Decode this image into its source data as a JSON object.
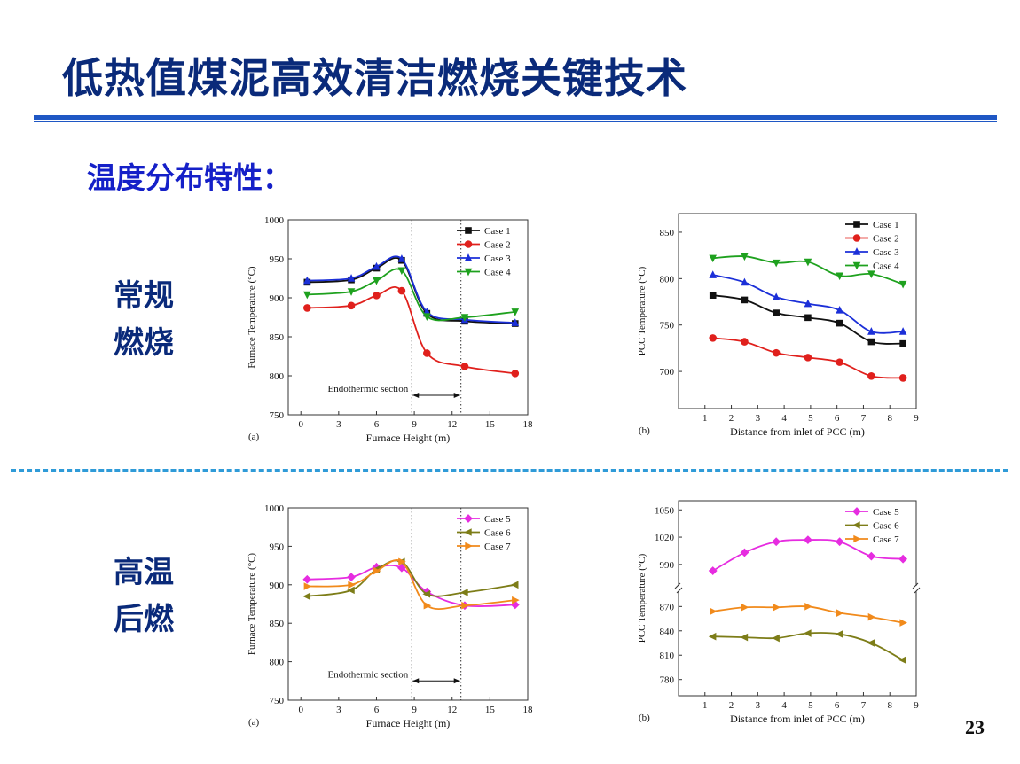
{
  "header": {
    "title": "低热值煤泥高效清洁燃烧关键技术"
  },
  "section": {
    "subtitle": "温度分布特性："
  },
  "labels": {
    "conventional": [
      "常规",
      "燃烧"
    ],
    "high_temp": [
      "高温",
      "后燃"
    ]
  },
  "page_number": "23",
  "colors": {
    "Case 1": "#111111",
    "Case 2": "#e0201c",
    "Case 3": "#1b2fd8",
    "Case 4": "#1ea11e",
    "Case 5": "#e62ce0",
    "Case 6": "#7d7d18",
    "Case 7": "#f18a1b"
  },
  "chart_data": [
    {
      "type": "line",
      "panel": "(a)",
      "xlabel": "Furnace Height (m)",
      "ylabel": "Furnace Temperature (°C)",
      "xlim": [
        -1,
        18
      ],
      "ylim": [
        750,
        1000
      ],
      "xticks": [
        0,
        3,
        6,
        9,
        12,
        15,
        18
      ],
      "yticks": [
        750,
        800,
        850,
        900,
        950,
        1000
      ],
      "legend": "top-right",
      "vlines": [
        8.8,
        12.7
      ],
      "annotation": {
        "text": "Endothermic section",
        "arrow_from": 8.8,
        "arrow_to": 12.7,
        "y": 775
      },
      "series": [
        {
          "name": "Case 1",
          "marker": "square",
          "x": [
            0.5,
            4,
            6,
            8,
            10,
            13,
            17
          ],
          "y": [
            920,
            923,
            938,
            948,
            880,
            870,
            867
          ]
        },
        {
          "name": "Case 2",
          "marker": "circle",
          "x": [
            0.5,
            4,
            6,
            8,
            10,
            13,
            17
          ],
          "y": [
            887,
            890,
            903,
            909,
            829,
            812,
            803
          ]
        },
        {
          "name": "Case 3",
          "marker": "triangle-up",
          "x": [
            0.5,
            4,
            6,
            8,
            10,
            13,
            17
          ],
          "y": [
            922,
            925,
            940,
            950,
            882,
            872,
            868
          ]
        },
        {
          "name": "Case 4",
          "marker": "triangle-down",
          "x": [
            0.5,
            4,
            6,
            8,
            10,
            13,
            17
          ],
          "y": [
            904,
            908,
            922,
            935,
            876,
            875,
            882
          ]
        }
      ]
    },
    {
      "type": "line",
      "panel": "(b)",
      "xlabel": "Distance from inlet of PCC (m)",
      "ylabel": "PCC  Temperature (°C)",
      "xlim": [
        0,
        9
      ],
      "ylim": [
        660,
        870
      ],
      "xticks": [
        1,
        2,
        3,
        4,
        5,
        6,
        7,
        8,
        9
      ],
      "yticks": [
        700,
        750,
        800,
        850
      ],
      "legend": "top-right",
      "series": [
        {
          "name": "Case 1",
          "marker": "square",
          "x": [
            1.3,
            2.5,
            3.7,
            4.9,
            6.1,
            7.3,
            8.5
          ],
          "y": [
            782,
            777,
            763,
            758,
            752,
            732,
            730
          ]
        },
        {
          "name": "Case 2",
          "marker": "circle",
          "x": [
            1.3,
            2.5,
            3.7,
            4.9,
            6.1,
            7.3,
            8.5
          ],
          "y": [
            736,
            732,
            720,
            715,
            710,
            695,
            693
          ]
        },
        {
          "name": "Case 3",
          "marker": "triangle-up",
          "x": [
            1.3,
            2.5,
            3.7,
            4.9,
            6.1,
            7.3,
            8.5
          ],
          "y": [
            804,
            796,
            780,
            773,
            766,
            743,
            743
          ]
        },
        {
          "name": "Case 4",
          "marker": "triangle-down",
          "x": [
            1.3,
            2.5,
            3.7,
            4.9,
            6.1,
            7.3,
            8.5
          ],
          "y": [
            822,
            824,
            817,
            818,
            803,
            805,
            794
          ]
        }
      ]
    },
    {
      "type": "line",
      "panel": "(a)",
      "xlabel": "Furnace Height (m)",
      "ylabel": "Furnace Temperature (°C)",
      "xlim": [
        -1,
        18
      ],
      "ylim": [
        750,
        1000
      ],
      "xticks": [
        0,
        3,
        6,
        9,
        12,
        15,
        18
      ],
      "yticks": [
        750,
        800,
        850,
        900,
        950,
        1000
      ],
      "legend": "top-right",
      "vlines": [
        8.8,
        12.7
      ],
      "annotation": {
        "text": "Endothermic section",
        "arrow_from": 8.8,
        "arrow_to": 12.7,
        "y": 775
      },
      "series": [
        {
          "name": "Case 5",
          "marker": "diamond",
          "x": [
            0.5,
            4,
            6,
            8,
            10,
            13,
            17
          ],
          "y": [
            907,
            910,
            923,
            922,
            891,
            873,
            874
          ]
        },
        {
          "name": "Case 6",
          "marker": "triangle-left",
          "x": [
            0.5,
            4,
            6,
            8,
            10,
            13,
            17
          ],
          "y": [
            885,
            893,
            920,
            930,
            888,
            890,
            900
          ]
        },
        {
          "name": "Case 7",
          "marker": "triangle-right",
          "x": [
            0.5,
            4,
            6,
            8,
            10,
            13,
            17
          ],
          "y": [
            898,
            900,
            918,
            930,
            873,
            873,
            880
          ]
        }
      ]
    },
    {
      "type": "line",
      "panel": "(b)",
      "xlabel": "Distance from inlet of PCC (m)",
      "ylabel": "PCC  Temperature (°C)",
      "xlim": [
        0,
        9
      ],
      "ylim": [
        760,
        1060
      ],
      "axis_break": true,
      "xticks": [
        1,
        2,
        3,
        4,
        5,
        6,
        7,
        8,
        9
      ],
      "yticks": [
        780,
        810,
        840,
        870,
        990,
        1020,
        1050
      ],
      "legend": "top-right",
      "series": [
        {
          "name": "Case 5",
          "marker": "diamond",
          "x": [
            1.3,
            2.5,
            3.7,
            4.9,
            6.1,
            7.3,
            8.5
          ],
          "y": [
            983,
            1003,
            1015,
            1017,
            1015,
            999,
            996
          ]
        },
        {
          "name": "Case 6",
          "marker": "triangle-left",
          "x": [
            1.3,
            2.5,
            3.7,
            4.9,
            6.1,
            7.3,
            8.5
          ],
          "y": [
            833,
            832,
            831,
            837,
            836,
            825,
            804
          ]
        },
        {
          "name": "Case 7",
          "marker": "triangle-right",
          "x": [
            1.3,
            2.5,
            3.7,
            4.9,
            6.1,
            7.3,
            8.5
          ],
          "y": [
            864,
            869,
            869,
            870,
            862,
            857,
            850
          ]
        }
      ]
    }
  ]
}
